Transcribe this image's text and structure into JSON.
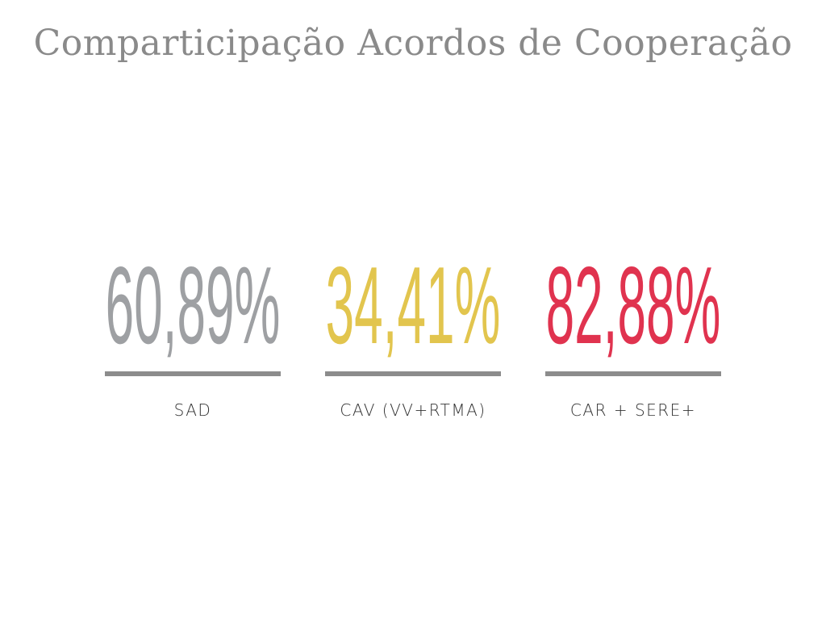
{
  "title": "Comparticipação Acordos de Cooperação",
  "stats": [
    {
      "value": "60,89%",
      "label": "SAD",
      "color": "#9ea0a3"
    },
    {
      "value": "34,41%",
      "label": "CAV (VV+RTMA)",
      "color": "#e2c54e"
    },
    {
      "value": "82,88%",
      "label": "CAR + SERE+",
      "color": "#e0334f"
    }
  ],
  "divider_color": "#8c8c8c"
}
